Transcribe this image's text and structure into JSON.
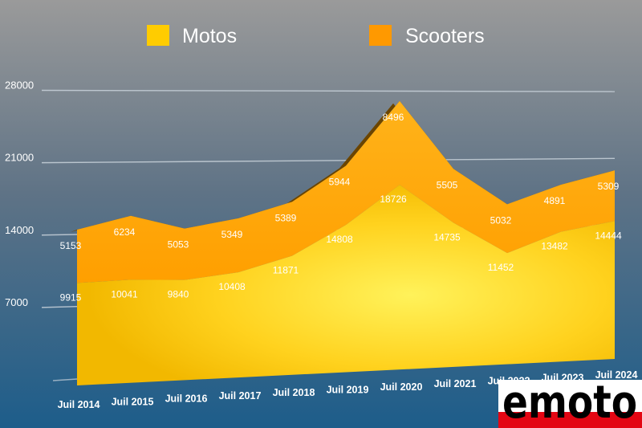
{
  "chart_data": {
    "type": "area",
    "stacked": true,
    "categories": [
      "Juil 2014",
      "Juil 2015",
      "Juil 2016",
      "Juil 2017",
      "Juil 2018",
      "Juil 2019",
      "Juil 2020",
      "Juil 2021",
      "Juil 2022",
      "Juil 2023",
      "Juil 2024"
    ],
    "series": [
      {
        "name": "Motos",
        "color": "#FFCC00",
        "values": [
          9915,
          10041,
          9840,
          10408,
          11871,
          14808,
          18726,
          14735,
          11452,
          13482,
          14444
        ]
      },
      {
        "name": "Scooters",
        "color": "#FF9900",
        "values": [
          5153,
          6234,
          5053,
          5349,
          5389,
          5944,
          8496,
          5505,
          5032,
          4891,
          5309
        ]
      }
    ],
    "yticks": [
      "28000",
      "21000",
      "14000",
      "7000"
    ],
    "ytick_values": [
      28000,
      21000,
      14000,
      7000
    ],
    "ylim": [
      0,
      28000
    ],
    "grid": true,
    "legend_position": "top"
  },
  "logo": {
    "text": "emoto"
  }
}
